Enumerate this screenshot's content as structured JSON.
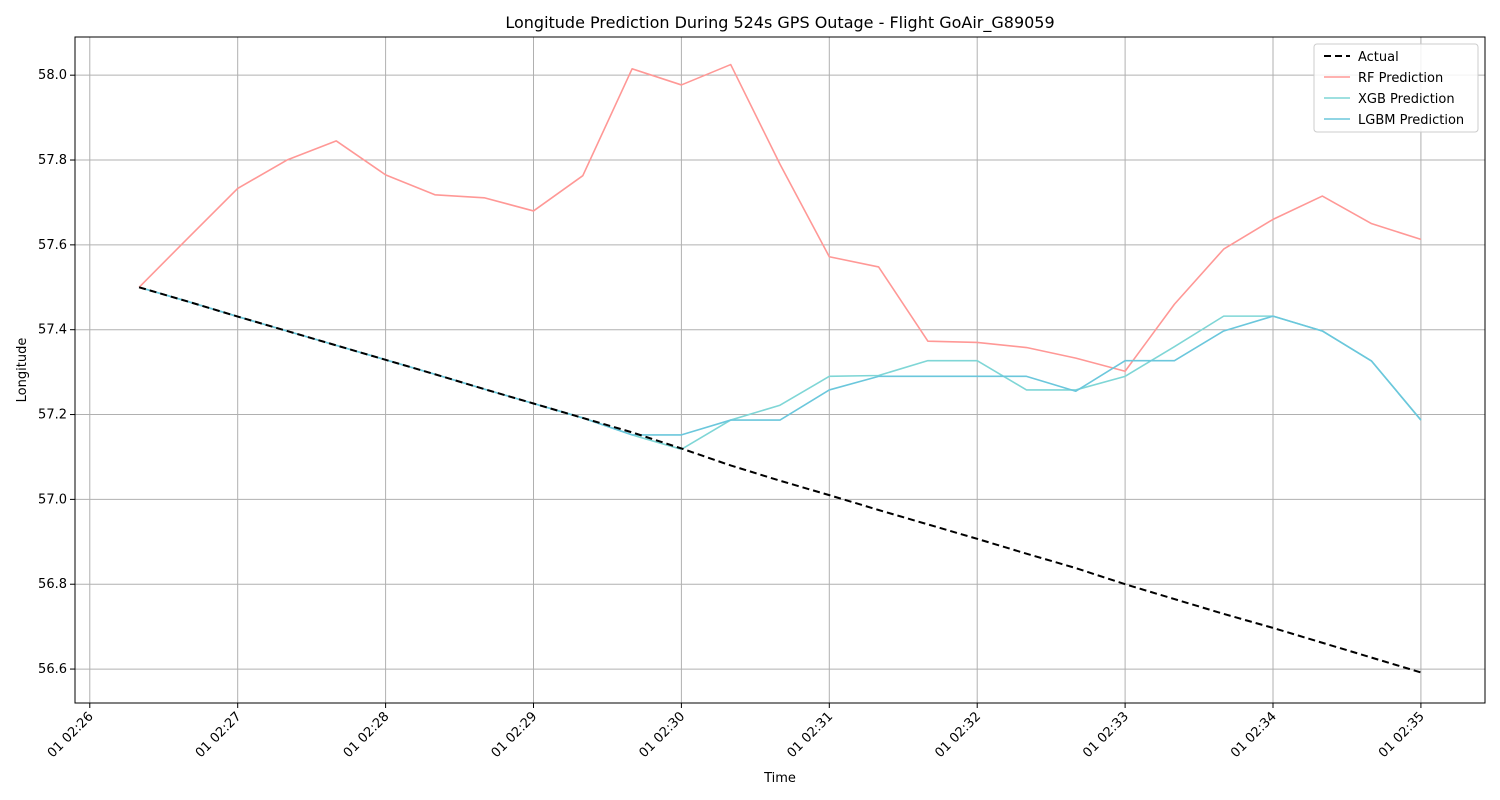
{
  "chart_data": {
    "type": "line",
    "title": "Longitude Prediction During 524s GPS Outage - Flight GoAir_G89059",
    "xlabel": "Time",
    "ylabel": "Longitude",
    "x_ticks": [
      "01 02:26",
      "01 02:27",
      "01 02:28",
      "01 02:29",
      "01 02:30",
      "01 02:31",
      "01 02:32",
      "01 02:33",
      "01 02:34",
      "01 02:35"
    ],
    "x": [
      "02:26:20",
      "02:26:40",
      "02:27:00",
      "02:27:20",
      "02:27:40",
      "02:28:00",
      "02:28:20",
      "02:28:40",
      "02:29:00",
      "02:29:20",
      "02:29:40",
      "02:30:00",
      "02:30:20",
      "02:30:40",
      "02:31:00",
      "02:31:20",
      "02:31:40",
      "02:32:00",
      "02:32:20",
      "02:32:40",
      "02:33:00",
      "02:33:20",
      "02:33:40",
      "02:34:00",
      "02:34:20",
      "02:34:40",
      "02:35:00"
    ],
    "xlim": [
      "02:25:54",
      "02:35:26"
    ],
    "ylim": [
      56.52,
      58.09
    ],
    "y_ticks": [
      "56.6",
      "56.8",
      "57.0",
      "57.2",
      "57.4",
      "57.6",
      "57.8",
      "58.0"
    ],
    "grid": true,
    "legend_position": "top-right",
    "series": [
      {
        "name": "Actual",
        "color": "#000000",
        "style": "dashed",
        "values": [
          57.5,
          57.466,
          57.431,
          57.397,
          57.363,
          57.329,
          57.295,
          57.26,
          57.226,
          57.192,
          57.158,
          57.12,
          57.08,
          57.044,
          57.01,
          56.975,
          56.941,
          56.907,
          56.872,
          56.838,
          56.8,
          56.765,
          56.73,
          56.697,
          56.662,
          56.627,
          56.592
        ]
      },
      {
        "name": "RF Prediction",
        "color": "#ff9896",
        "style": "solid",
        "values": [
          57.5,
          57.617,
          57.733,
          57.8,
          57.845,
          57.765,
          57.718,
          57.711,
          57.68,
          57.763,
          58.015,
          57.977,
          58.025,
          57.79,
          57.572,
          57.548,
          57.373,
          57.37,
          57.358,
          57.333,
          57.302,
          57.46,
          57.59,
          57.66,
          57.715,
          57.65,
          57.613
        ]
      },
      {
        "name": "XGB Prediction",
        "color": "#7fd6d6",
        "style": "solid",
        "values": [
          57.5,
          57.466,
          57.431,
          57.397,
          57.363,
          57.329,
          57.295,
          57.26,
          57.226,
          57.192,
          57.152,
          57.118,
          57.187,
          57.222,
          57.29,
          57.292,
          57.327,
          57.327,
          57.258,
          57.258,
          57.29,
          57.36,
          57.432,
          57.432,
          57.397,
          57.326,
          57.187
        ]
      },
      {
        "name": "LGBM Prediction",
        "color": "#6bc7dc",
        "style": "solid",
        "values": [
          57.5,
          57.466,
          57.431,
          57.397,
          57.363,
          57.329,
          57.295,
          57.26,
          57.226,
          57.192,
          57.152,
          57.152,
          57.187,
          57.187,
          57.258,
          57.29,
          57.29,
          57.29,
          57.29,
          57.255,
          57.327,
          57.327,
          57.397,
          57.432,
          57.397,
          57.326,
          57.187
        ]
      }
    ]
  }
}
